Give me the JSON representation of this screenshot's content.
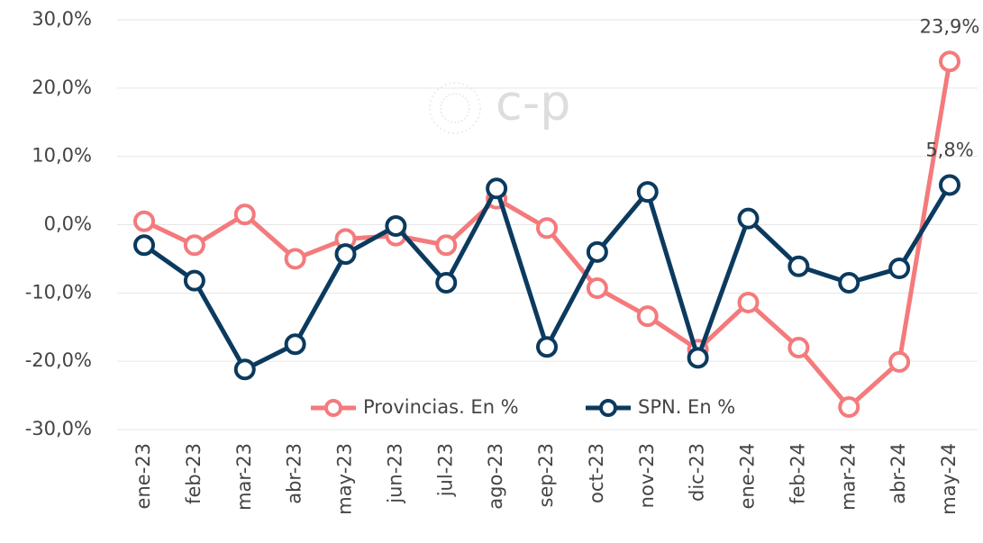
{
  "chart_data": {
    "type": "line",
    "watermark": "c-p",
    "categories": [
      "ene-23",
      "feb-23",
      "mar-23",
      "abr-23",
      "may-23",
      "jun-23",
      "jul-23",
      "ago-23",
      "sep-23",
      "oct-23",
      "nov-23",
      "dic-23",
      "ene-24",
      "feb-24",
      "mar-24",
      "abr-24",
      "may-24"
    ],
    "series": [
      {
        "name": "Provincias. En %",
        "color": "#f47a7c",
        "values": [
          0.5,
          -3.0,
          1.5,
          -5.0,
          -2.1,
          -1.6,
          -3.0,
          3.8,
          -0.5,
          -9.3,
          -13.4,
          -18.3,
          -11.4,
          -18.0,
          -26.7,
          -20.1,
          23.9
        ],
        "value_labels": [
          null,
          null,
          null,
          null,
          null,
          null,
          null,
          null,
          null,
          null,
          null,
          null,
          null,
          null,
          null,
          null,
          "23,9%"
        ]
      },
      {
        "name": "SPN. En %",
        "color": "#0b3a5e",
        "values": [
          -3.0,
          -8.2,
          -21.2,
          -17.5,
          -4.3,
          -0.2,
          -8.5,
          5.3,
          -17.9,
          -4.0,
          4.8,
          -19.5,
          0.9,
          -6.1,
          -8.5,
          -6.4,
          5.8
        ],
        "value_labels": [
          null,
          null,
          null,
          null,
          null,
          null,
          null,
          null,
          null,
          null,
          null,
          null,
          null,
          null,
          null,
          null,
          "5,8%"
        ]
      }
    ],
    "ylim": [
      -30,
      30
    ],
    "yticks": [
      {
        "value": -30,
        "label": "-30,0%"
      },
      {
        "value": -20,
        "label": "-20,0%"
      },
      {
        "value": -10,
        "label": "-10,0%"
      },
      {
        "value": 0,
        "label": "0,0%"
      },
      {
        "value": 10,
        "label": "10,0%"
      },
      {
        "value": 20,
        "label": "20,0%"
      },
      {
        "value": 30,
        "label": "30,0%"
      }
    ],
    "grid": true,
    "legend": "bottom"
  }
}
